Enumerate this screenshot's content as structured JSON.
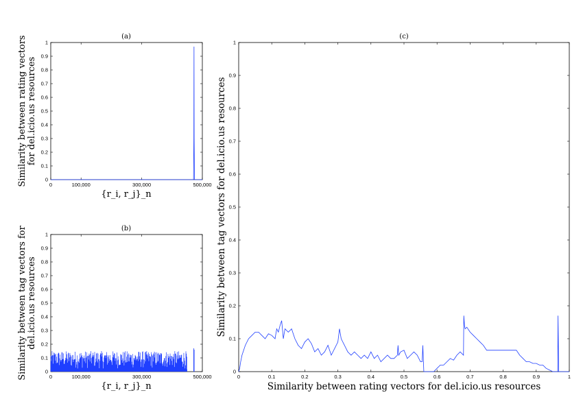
{
  "colors": {
    "series": "#1f3fff",
    "axis": "#000000",
    "background": "#ffffff"
  },
  "chart_data": [
    {
      "id": "a",
      "type": "line",
      "title": "(a)",
      "xlabel": "{r_i, r_j}_n",
      "ylabel_lines": [
        "Similarity between rating vectors",
        "for del.icio.us resources"
      ],
      "xlim": [
        0,
        500000
      ],
      "ylim": [
        0,
        1
      ],
      "xticks": [
        0,
        100000,
        300000,
        500000
      ],
      "xtick_labels": [
        "0",
        "100,000",
        "300,000",
        "500,000"
      ],
      "yticks": [
        0,
        0.1,
        0.2,
        0.3,
        0.4,
        0.5,
        0.6,
        0.7,
        0.8,
        0.9,
        1
      ],
      "ytick_labels": [
        "0",
        "0.1",
        "0.2",
        "0.3",
        "0.4",
        "0.5",
        "0.6",
        "0.7",
        "0.8",
        "0.9",
        "1"
      ],
      "series": [
        {
          "x": [
            0,
            471000,
            472000,
            472500,
            473000,
            474000,
            500000
          ],
          "y": [
            0,
            0,
            0.3,
            0.97,
            0.3,
            0,
            0
          ]
        }
      ]
    },
    {
      "id": "b",
      "type": "line",
      "title": "(b)",
      "xlabel": "{r_i, r_j}_n",
      "ylabel_lines": [
        "Similarity between tag vectors for",
        "del.icio.us resources"
      ],
      "xlim": [
        0,
        500000
      ],
      "ylim": [
        0,
        1
      ],
      "xticks": [
        0,
        100000,
        300000,
        500000
      ],
      "xtick_labels": [
        "0",
        "100,000",
        "300,000",
        "500,000"
      ],
      "yticks": [
        0,
        0.1,
        0.2,
        0.3,
        0.4,
        0.5,
        0.6,
        0.7,
        0.8,
        0.9,
        1
      ],
      "ytick_labels": [
        "0",
        "0.1",
        "0.2",
        "0.3",
        "0.4",
        "0.5",
        "0.6",
        "0.7",
        "0.8",
        "0.9",
        "1"
      ],
      "series": [
        {
          "dense_noise": {
            "x_range": [
              0,
              450000
            ],
            "n_spikes": 320,
            "max": 0.15,
            "min": 0.02
          },
          "extra_spikes": [
            {
              "x": 471500,
              "y": 0.17
            },
            {
              "x": 473000,
              "y": 0.16
            }
          ]
        }
      ]
    },
    {
      "id": "c",
      "type": "line",
      "title": "(c)",
      "xlabel": "Similarity between rating vectors for del.icio.us resources",
      "ylabel": "Similarity between tag vectors for del.icio.us resources",
      "xlim": [
        0,
        1
      ],
      "ylim": [
        0,
        1
      ],
      "xticks": [
        0,
        0.1,
        0.2,
        0.3,
        0.4,
        0.5,
        0.6,
        0.7,
        0.8,
        0.9,
        1
      ],
      "xtick_labels": [
        "0",
        "0.1",
        "0.2",
        "0.3",
        "0.4",
        "0.5",
        "0.6",
        "0.7",
        "0.8",
        "0.9",
        "1"
      ],
      "yticks": [
        0,
        0.1,
        0.2,
        0.3,
        0.4,
        0.5,
        0.6,
        0.7,
        0.8,
        0.9,
        1
      ],
      "ytick_labels": [
        "0",
        "0.1",
        "0.2",
        "0.3",
        "0.4",
        "0.5",
        "0.6",
        "0.7",
        "0.8",
        "0.9",
        "1"
      ],
      "series": [
        {
          "x": [
            0,
            0.003,
            0.006,
            0.01,
            0.02,
            0.03,
            0.04,
            0.05,
            0.06,
            0.07,
            0.08,
            0.09,
            0.1,
            0.11,
            0.115,
            0.12,
            0.125,
            0.13,
            0.135,
            0.14,
            0.15,
            0.16,
            0.17,
            0.18,
            0.19,
            0.2,
            0.21,
            0.22,
            0.23,
            0.24,
            0.25,
            0.26,
            0.27,
            0.28,
            0.29,
            0.3,
            0.305,
            0.31,
            0.32,
            0.33,
            0.34,
            0.35,
            0.36,
            0.37,
            0.38,
            0.39,
            0.4,
            0.41,
            0.42,
            0.43,
            0.44,
            0.45,
            0.46,
            0.47,
            0.48,
            0.482,
            0.484,
            0.49,
            0.5,
            0.51,
            0.52,
            0.53,
            0.54,
            0.55,
            0.555,
            0.557,
            0.56,
            0.57,
            0.58,
            0.59,
            0.6,
            0.61,
            0.62,
            0.63,
            0.64,
            0.65,
            0.66,
            0.67,
            0.68,
            0.681,
            0.683,
            0.685,
            0.69,
            0.7,
            0.71,
            0.72,
            0.73,
            0.74,
            0.75,
            0.76,
            0.77,
            0.78,
            0.79,
            0.8,
            0.81,
            0.82,
            0.83,
            0.84,
            0.85,
            0.86,
            0.87,
            0.88,
            0.89,
            0.9,
            0.91,
            0.92,
            0.93,
            0.94,
            0.95,
            0.96,
            0.965,
            0.966,
            0.968,
            0.97,
            1.0
          ],
          "y": [
            0,
            0.01,
            0.03,
            0.05,
            0.08,
            0.1,
            0.11,
            0.12,
            0.12,
            0.11,
            0.1,
            0.115,
            0.11,
            0.1,
            0.13,
            0.12,
            0.14,
            0.155,
            0.1,
            0.13,
            0.12,
            0.13,
            0.1,
            0.08,
            0.07,
            0.09,
            0.1,
            0.085,
            0.06,
            0.07,
            0.05,
            0.06,
            0.08,
            0.05,
            0.07,
            0.09,
            0.13,
            0.1,
            0.08,
            0.06,
            0.05,
            0.06,
            0.05,
            0.04,
            0.05,
            0.04,
            0.06,
            0.04,
            0.05,
            0.03,
            0.04,
            0.05,
            0.04,
            0.04,
            0.05,
            0.08,
            0.05,
            0.06,
            0.065,
            0.04,
            0.05,
            0.06,
            0.05,
            0.03,
            0.03,
            0.08,
            0,
            0,
            0,
            0,
            0.01,
            0.02,
            0.02,
            0.03,
            0.04,
            0.035,
            0.05,
            0.06,
            0.05,
            0.17,
            0.14,
            0.13,
            0.135,
            0.12,
            0.11,
            0.1,
            0.09,
            0.08,
            0.065,
            0.065,
            0.065,
            0.065,
            0.065,
            0.065,
            0.065,
            0.065,
            0.065,
            0.065,
            0.05,
            0.04,
            0.03,
            0.03,
            0.025,
            0.025,
            0.02,
            0.02,
            0.01,
            0.005,
            0,
            0,
            0,
            0.17,
            0,
            0,
            0
          ]
        }
      ]
    }
  ]
}
